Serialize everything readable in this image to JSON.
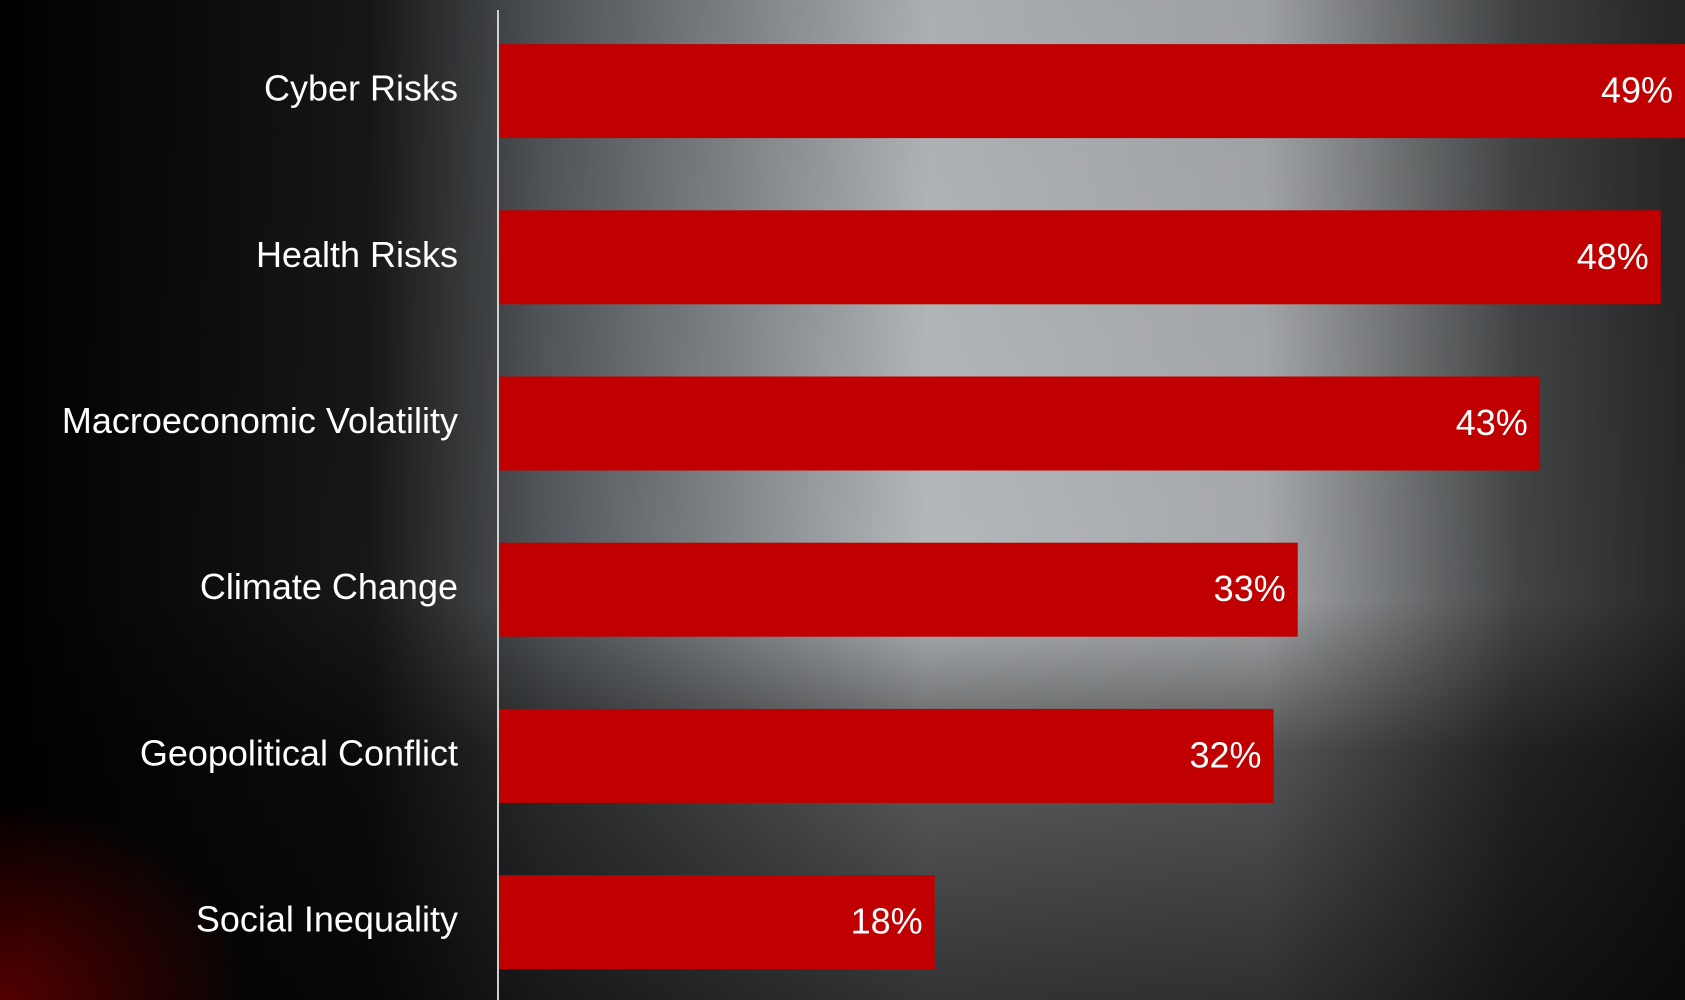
{
  "chart_data": {
    "type": "bar",
    "orientation": "horizontal",
    "categories": [
      "Cyber Risks",
      "Health Risks",
      "Macroeconomic Volatility",
      "Climate Change",
      "Geopolitical Conflict",
      "Social Inequality"
    ],
    "values": [
      49,
      48,
      43,
      33,
      32,
      18
    ],
    "value_labels": [
      "49%",
      "48%",
      "43%",
      "33%",
      "32%",
      "18%"
    ],
    "color": "#c00000"
  }
}
